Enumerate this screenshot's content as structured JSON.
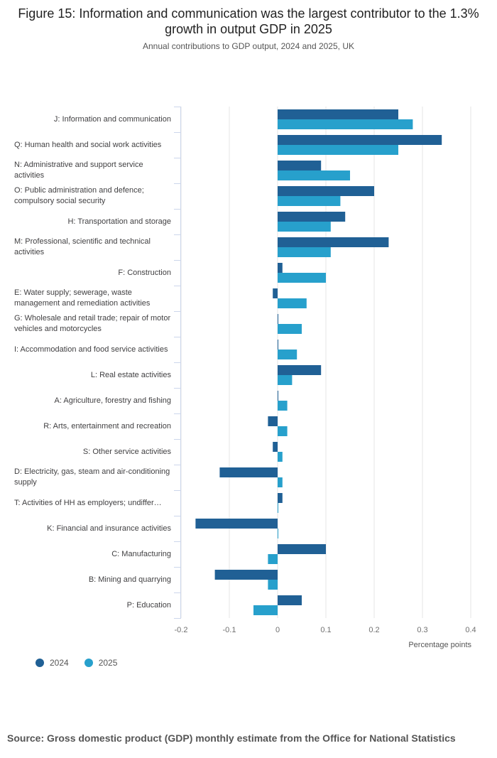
{
  "chart_data": {
    "type": "bar",
    "orientation": "horizontal",
    "title": "Figure 15: Information and communication was the largest contributor to the 1.3% growth in output GDP in 2025",
    "subtitle": "Annual contributions to GDP output, 2024 and 2025, UK",
    "xlabel": "Percentage points",
    "xlim": [
      -0.2,
      0.4
    ],
    "xticks": [
      "-0.2",
      "-0.1",
      "0",
      "0.1",
      "0.2",
      "0.3",
      "0.4"
    ],
    "grid": true,
    "legend_placement": "bottom-left",
    "categories": [
      "J: Information and communication",
      "Q: Human health and social work activities",
      "N: Administrative and support service activities",
      "O: Public administration and defence; compulsory social security",
      "H: Transportation and storage",
      "M: Professional, scientific and technical activities",
      "F: Construction",
      "E: Water supply; sewerage, waste management and remediation activities",
      "G: Wholesale and retail trade; repair of motor vehicles and motorcycles",
      "I: Accommodation and food service activities",
      "L: Real estate activities",
      "A: Agriculture, forestry and fishing",
      "R: Arts, entertainment and recreation",
      "S: Other service activities",
      "D: Electricity, gas, steam and air-conditioning supply",
      "T: Activities of HH as employers; undiffer…",
      "K: Financial and insurance activities",
      "C: Manufacturing",
      "B: Mining and quarrying",
      "P: Education"
    ],
    "series": [
      {
        "name": "2024",
        "color": "#206095",
        "values": [
          0.25,
          0.34,
          0.09,
          0.2,
          0.14,
          0.23,
          0.01,
          -0.01,
          0.0,
          0.0,
          0.09,
          0.0,
          -0.02,
          -0.01,
          -0.12,
          0.01,
          -0.17,
          0.1,
          -0.13,
          0.05
        ]
      },
      {
        "name": "2025",
        "color": "#27a0cc",
        "values": [
          0.28,
          0.25,
          0.15,
          0.13,
          0.11,
          0.11,
          0.1,
          0.06,
          0.05,
          0.04,
          0.03,
          0.02,
          0.02,
          0.01,
          0.01,
          0.0,
          0.0,
          -0.02,
          -0.02,
          -0.05
        ]
      }
    ]
  },
  "source": "Source: Gross domestic product (GDP) monthly estimate from the Office for National Statistics"
}
